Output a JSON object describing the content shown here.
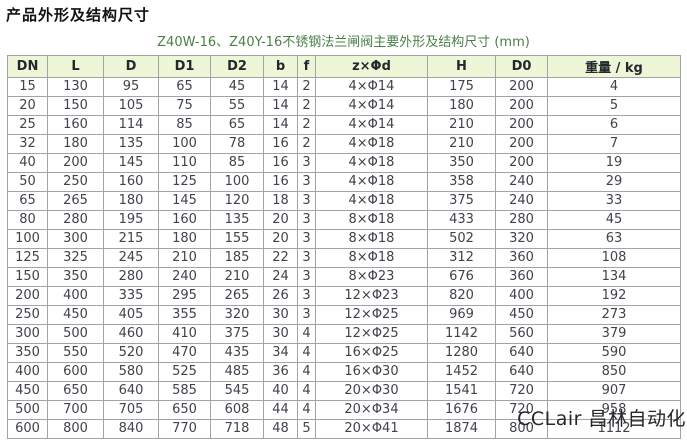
{
  "page": {
    "title": "产品外形及结构尺寸",
    "subtitle": "Z40W-16、Z40Y-16不锈钢法兰闸阀主要外形及结构尺寸 (mm)",
    "watermark": "CCLair 昌林自动化"
  },
  "colors": {
    "header_bg": "#edf6d7",
    "table_border": "#a3a3a3",
    "subtitle_text": "#4a8048",
    "cell_text": "#3f434b"
  },
  "table": {
    "headers": [
      "DN",
      "L",
      "D",
      "D1",
      "D2",
      "b",
      "f",
      "z×Φd",
      "H",
      "D0",
      "重量 / kg"
    ],
    "rows": [
      [
        "15",
        "130",
        "95",
        "65",
        "45",
        "14",
        "2",
        "4×Φ14",
        "175",
        "200",
        "4"
      ],
      [
        "20",
        "150",
        "105",
        "75",
        "55",
        "14",
        "2",
        "4×Φ14",
        "180",
        "200",
        "5"
      ],
      [
        "25",
        "160",
        "114",
        "85",
        "65",
        "14",
        "2",
        "4×Φ14",
        "210",
        "200",
        "6"
      ],
      [
        "32",
        "180",
        "135",
        "100",
        "78",
        "16",
        "2",
        "4×Φ18",
        "210",
        "200",
        "7"
      ],
      [
        "40",
        "200",
        "145",
        "110",
        "85",
        "16",
        "3",
        "4×Φ18",
        "350",
        "200",
        "19"
      ],
      [
        "50",
        "250",
        "160",
        "125",
        "100",
        "16",
        "3",
        "4×Φ18",
        "358",
        "240",
        "29"
      ],
      [
        "65",
        "265",
        "180",
        "145",
        "120",
        "18",
        "3",
        "4×Φ18",
        "375",
        "240",
        "33"
      ],
      [
        "80",
        "280",
        "195",
        "160",
        "135",
        "20",
        "3",
        "8×Φ18",
        "433",
        "280",
        "45"
      ],
      [
        "100",
        "300",
        "215",
        "180",
        "155",
        "20",
        "3",
        "8×Φ18",
        "502",
        "320",
        "63"
      ],
      [
        "125",
        "325",
        "245",
        "210",
        "185",
        "22",
        "3",
        "8×Φ18",
        "312",
        "360",
        "108"
      ],
      [
        "150",
        "350",
        "280",
        "240",
        "210",
        "24",
        "3",
        "8×Φ23",
        "676",
        "360",
        "134"
      ],
      [
        "200",
        "400",
        "335",
        "295",
        "265",
        "26",
        "3",
        "12×Φ23",
        "820",
        "400",
        "192"
      ],
      [
        "250",
        "450",
        "405",
        "355",
        "320",
        "30",
        "3",
        "12×Φ25",
        "969",
        "450",
        "273"
      ],
      [
        "300",
        "500",
        "460",
        "410",
        "375",
        "30",
        "4",
        "12×Φ25",
        "1142",
        "560",
        "379"
      ],
      [
        "350",
        "550",
        "520",
        "470",
        "435",
        "34",
        "4",
        "16×Φ25",
        "1280",
        "640",
        "590"
      ],
      [
        "400",
        "600",
        "580",
        "525",
        "485",
        "36",
        "4",
        "16×Φ30",
        "1452",
        "640",
        "850"
      ],
      [
        "450",
        "650",
        "640",
        "585",
        "545",
        "40",
        "4",
        "20×Φ30",
        "1541",
        "720",
        "907"
      ],
      [
        "500",
        "700",
        "705",
        "650",
        "608",
        "44",
        "4",
        "20×Φ34",
        "1676",
        "720",
        "958"
      ],
      [
        "600",
        "800",
        "840",
        "770",
        "718",
        "48",
        "5",
        "20×Φ41",
        "1874",
        "800",
        "1112"
      ]
    ]
  }
}
